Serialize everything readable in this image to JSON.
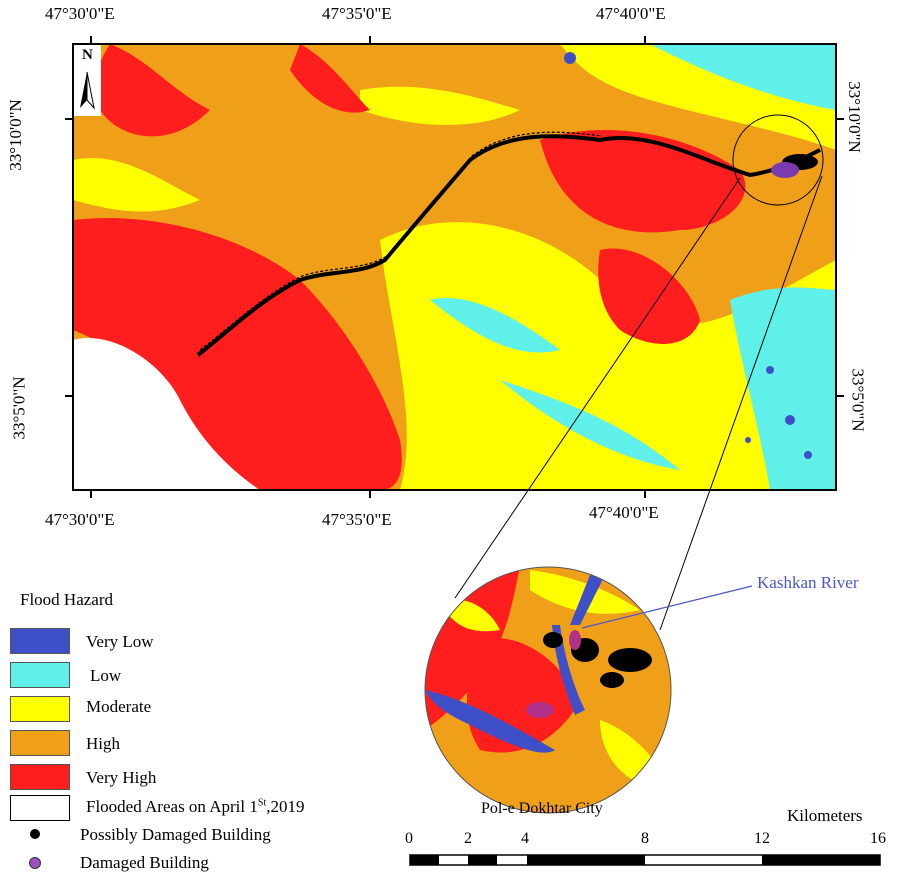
{
  "top_axis_labels": [
    "47°30'0\"E",
    "47°35'0\"E",
    "47°40'0\"E"
  ],
  "bottom_axis_labels": [
    "47°30'0\"E",
    "47°35'0\"E",
    "47°40'0\"E"
  ],
  "left_axis_labels": [
    "33°10'0\"N",
    "33°5'0\"N"
  ],
  "right_axis_labels": [
    "33°10'0\"N",
    "33°5'0\"N"
  ],
  "north_arrow_label": "N",
  "legend": {
    "title": "Flood Hazard",
    "classes": [
      {
        "label": "Very Low",
        "color": "#3f4fc8"
      },
      {
        "label": "Low",
        "color": "#5ff0ea"
      },
      {
        "label": "Moderate",
        "color": "#ffff00"
      },
      {
        "label": "High",
        "color": "#f0a018"
      },
      {
        "label": "Very High",
        "color": "#ff1e1e"
      }
    ],
    "flooded_prefix": "Flooded Areas on April 1",
    "flooded_sup": "St",
    "flooded_suffix": ",2019",
    "possibly_damaged": "Possibly Damaged Building",
    "damaged": "Damaged Building"
  },
  "inset": {
    "river_label": "Kashkan River",
    "city_label": "Pol-e Dokhtar City"
  },
  "scale_bar": {
    "unit": "Kilometers",
    "ticks": [
      "0",
      "2",
      "4",
      "8",
      "12",
      "16"
    ]
  }
}
